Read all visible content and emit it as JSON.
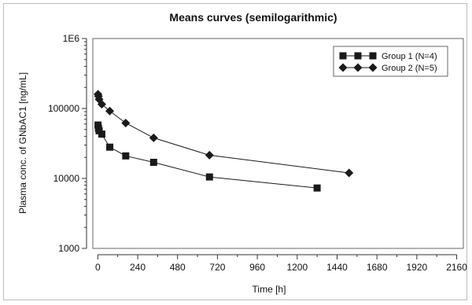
{
  "chart_data": {
    "type": "line",
    "title": "Means curves (semilogarithmic)",
    "xlabel": "Time [h]",
    "ylabel": "Plasma conc. of GNbAC1 [ng/mL]",
    "xlim": [
      -30,
      2200
    ],
    "ylim": [
      1000,
      1000000
    ],
    "yscale": "log",
    "x_ticks": [
      0,
      240,
      480,
      720,
      960,
      1200,
      1440,
      1680,
      1920,
      2160
    ],
    "y_ticks": [
      {
        "value": 1000,
        "label": "1000"
      },
      {
        "value": 10000,
        "label": "10000"
      },
      {
        "value": 100000,
        "label": "100000"
      },
      {
        "value": 1000000,
        "label": "1E6"
      }
    ],
    "grid": false,
    "legend_position": "top-right",
    "series": [
      {
        "name": "Group 1 (N=4)",
        "marker": "square",
        "color": "#1a1a1a",
        "x": [
          1,
          4,
          8,
          24,
          72,
          168,
          336,
          672,
          1320
        ],
        "y": [
          58000,
          52000,
          48000,
          43000,
          28000,
          21000,
          17000,
          10500,
          7300
        ]
      },
      {
        "name": "Group 2 (N=5)",
        "marker": "diamond",
        "color": "#1a1a1a",
        "x": [
          1,
          4,
          8,
          24,
          72,
          168,
          336,
          672,
          1512
        ],
        "y": [
          160000,
          150000,
          135000,
          115000,
          92000,
          62000,
          38000,
          21500,
          12000
        ]
      }
    ]
  }
}
